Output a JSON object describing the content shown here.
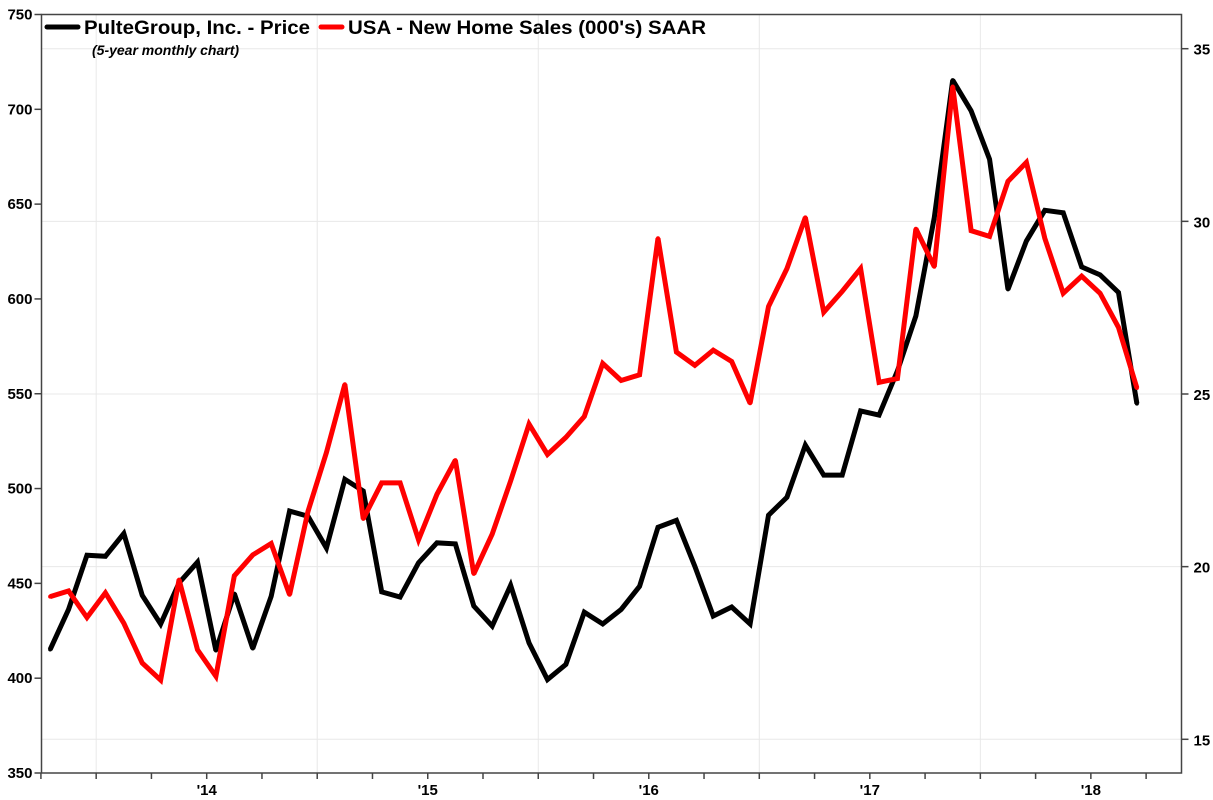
{
  "chart_data": {
    "type": "line",
    "title": "",
    "subtitle": "(5-year monthly chart)",
    "legend_position": "top-left",
    "grid": true,
    "x": [
      "2013-04",
      "2013-05",
      "2013-06",
      "2013-07",
      "2013-08",
      "2013-09",
      "2013-10",
      "2013-11",
      "2013-12",
      "2014-01",
      "2014-02",
      "2014-03",
      "2014-04",
      "2014-05",
      "2014-06",
      "2014-07",
      "2014-08",
      "2014-09",
      "2014-10",
      "2014-11",
      "2014-12",
      "2015-01",
      "2015-02",
      "2015-03",
      "2015-04",
      "2015-05",
      "2015-06",
      "2015-07",
      "2015-08",
      "2015-09",
      "2015-10",
      "2015-11",
      "2015-12",
      "2016-01",
      "2016-02",
      "2016-03",
      "2016-04",
      "2016-05",
      "2016-06",
      "2016-07",
      "2016-08",
      "2016-09",
      "2016-10",
      "2016-11",
      "2016-12",
      "2017-01",
      "2017-02",
      "2017-03",
      "2017-04",
      "2017-05",
      "2017-06",
      "2017-07",
      "2017-08",
      "2017-09",
      "2017-10",
      "2017-11",
      "2017-12",
      "2018-01",
      "2018-02",
      "2018-03"
    ],
    "x_tick_labels": [
      {
        "date": "2014-01",
        "label": "'14"
      },
      {
        "date": "2015-01",
        "label": "'15"
      },
      {
        "date": "2016-01",
        "label": "'16"
      },
      {
        "date": "2017-01",
        "label": "'17"
      },
      {
        "date": "2018-01",
        "label": "'18"
      }
    ],
    "y_left": {
      "range": [
        350,
        750
      ],
      "ticks": [
        "350",
        "400",
        "450",
        "500",
        "550",
        "600",
        "650",
        "700",
        "750"
      ]
    },
    "y_right": {
      "range": [
        14.3,
        35.95
      ],
      "ticks": [
        "15",
        "20",
        "25",
        "30",
        "35"
      ]
    },
    "series": [
      {
        "name": "PulteGroup, Inc. - Price",
        "color": "#000000",
        "axis": "right",
        "values": [
          17.6,
          18.76,
          20.33,
          20.3,
          20.96,
          19.17,
          18.34,
          19.53,
          20.13,
          17.57,
          19.22,
          17.63,
          19.14,
          21.61,
          21.46,
          20.54,
          22.53,
          22.19,
          19.27,
          19.12,
          20.11,
          20.69,
          20.66,
          18.86,
          18.28,
          19.46,
          17.79,
          16.73,
          17.17,
          18.68,
          18.34,
          18.76,
          19.43,
          21.14,
          21.34,
          20.01,
          18.57,
          18.83,
          18.34,
          21.49,
          22.01,
          23.52,
          22.65,
          22.65,
          24.51,
          24.39,
          25.67,
          27.26,
          30.11,
          34.09,
          33.2,
          31.8,
          28.03,
          29.43,
          30.32,
          30.25,
          28.68,
          28.45,
          27.94,
          24.72
        ]
      },
      {
        "name": "USA - New Home Sales (000's) SAAR",
        "color": "#ff0000",
        "axis": "left",
        "values": [
          443,
          446,
          432,
          445,
          429,
          408,
          399,
          452,
          415,
          401,
          454,
          465,
          471,
          444,
          488,
          519,
          555,
          484,
          503,
          503,
          473,
          497,
          515,
          455,
          476,
          504,
          534,
          518,
          527,
          538,
          566,
          557,
          560,
          632,
          572,
          565,
          573,
          567,
          545,
          596,
          616,
          643,
          593,
          604,
          616,
          556,
          558,
          637,
          617,
          712,
          636,
          633,
          662,
          672,
          632,
          603,
          612,
          603,
          585,
          553
        ]
      }
    ]
  }
}
